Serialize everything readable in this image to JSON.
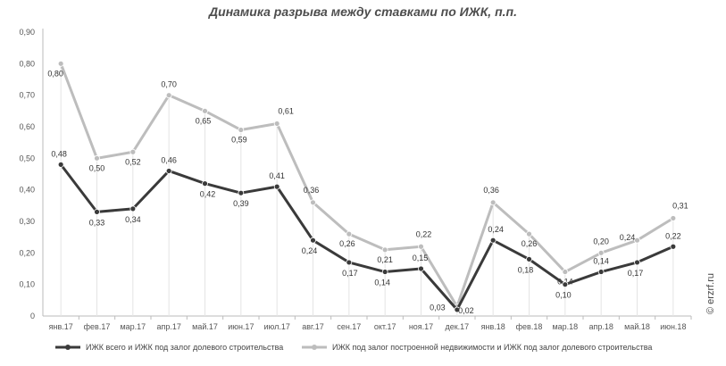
{
  "title": "Динамика разрыва между ставками по ИЖК, п.п.",
  "watermark": "© erzrf.ru",
  "chart_data": {
    "type": "line",
    "title": "Динамика разрыва между ставками по ИЖК, п.п.",
    "categories": [
      "янв.17",
      "фев.17",
      "мар.17",
      "апр.17",
      "май.17",
      "июн.17",
      "июл.17",
      "авг.17",
      "сен.17",
      "окт.17",
      "ноя.17",
      "дек.17",
      "янв.18",
      "фев.18",
      "мар.18",
      "апр.18",
      "май.18",
      "июн.18"
    ],
    "y_ticks": [
      "0",
      "0,10",
      "0,20",
      "0,30",
      "0,40",
      "0,50",
      "0,60",
      "0,70",
      "0,80",
      "0,90"
    ],
    "ylim": [
      0,
      0.9
    ],
    "grid": "none",
    "legend_position": "bottom",
    "series": [
      {
        "name": "ИЖК всего и ИЖК под залог долевого строительства",
        "color": "#3a3a3a",
        "values": [
          0.48,
          0.33,
          0.34,
          0.46,
          0.42,
          0.39,
          0.41,
          0.24,
          0.17,
          0.14,
          0.15,
          0.02,
          0.24,
          0.18,
          0.1,
          0.14,
          0.17,
          0.22
        ],
        "labels": [
          "0,48",
          "0,33",
          "0,34",
          "0,46",
          "0,42",
          "0,39",
          "0,41",
          "0,24",
          "0,17",
          "0,14",
          "0,15",
          "0,02",
          "0,24",
          "0,18",
          "0,10",
          "0,14",
          "0,17",
          "0,22"
        ]
      },
      {
        "name": "ИЖК под залог построенной недвижимости и ИЖК под залог долевого строительства",
        "color": "#bdbdbd",
        "values": [
          0.8,
          0.5,
          0.52,
          0.7,
          0.65,
          0.59,
          0.61,
          0.36,
          0.26,
          0.21,
          0.22,
          0.03,
          0.36,
          0.26,
          0.14,
          0.2,
          0.24,
          0.31
        ],
        "labels": [
          "0,80",
          "0,50",
          "0,52",
          "0,70",
          "0,65",
          "0,59",
          "0,61",
          "0,36",
          "0,26",
          "0,21",
          "0,22",
          "0,03",
          "0,36",
          "0,26",
          "0,14",
          "0,20",
          "0,24",
          "0,31"
        ]
      }
    ]
  }
}
